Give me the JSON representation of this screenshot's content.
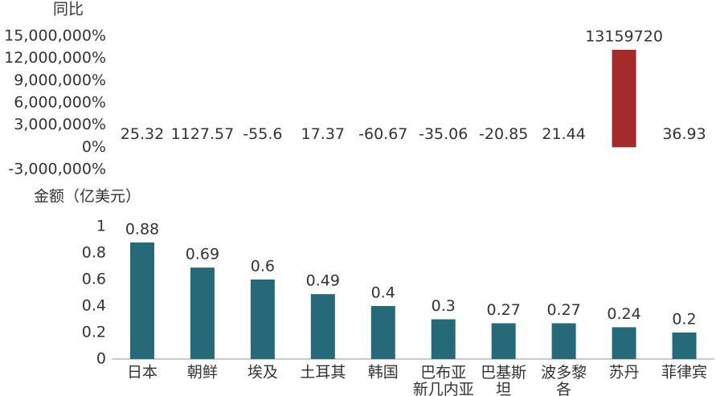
{
  "chart_data": [
    {
      "type": "bar",
      "title": "同比",
      "color": "#a52a2a",
      "values": [
        25.32,
        1127.57,
        -55.6,
        17.37,
        -60.67,
        -35.06,
        -20.85,
        21.44,
        13159720,
        36.93
      ],
      "ylim": [
        -3000000,
        15000000
      ],
      "yticks": [
        {
          "value": -3000000,
          "label": "-3,000,000%"
        },
        {
          "value": 0,
          "label": "0%"
        },
        {
          "value": 3000000,
          "label": "3,000,000%"
        },
        {
          "value": 6000000,
          "label": "6,000,000%"
        },
        {
          "value": 9000000,
          "label": "9,000,000%"
        },
        {
          "value": 12000000,
          "label": "12,000,000%"
        },
        {
          "value": 15000000,
          "label": "15,000,000%"
        }
      ]
    },
    {
      "type": "bar",
      "title": "金额（亿美元）",
      "color": "#266a7a",
      "categories": [
        "日本",
        "朝鲜",
        "埃及",
        "土耳其",
        "韩国",
        "巴布亚新几内亚",
        "巴基斯坦",
        "波多黎各",
        "苏丹",
        "菲律宾"
      ],
      "values": [
        0.88,
        0.69,
        0.6,
        0.49,
        0.4,
        0.3,
        0.27,
        0.27,
        0.24,
        0.2
      ],
      "ylim": [
        0,
        1
      ],
      "yticks": [
        0,
        0.2,
        0.4,
        0.6,
        0.8,
        1
      ]
    }
  ]
}
